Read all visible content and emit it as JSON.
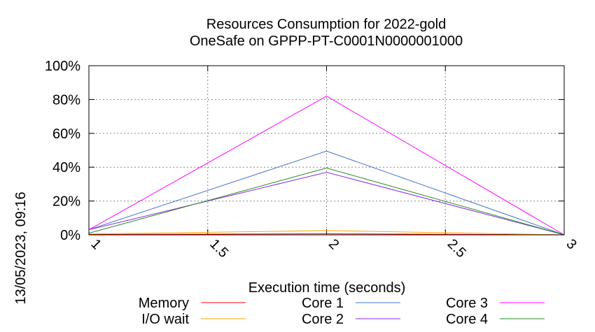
{
  "chart_data": {
    "type": "line",
    "title": "Resources Consumption for 2022-gold",
    "subtitle": "OneSafe on GPPP-PT-C0001N0000001000",
    "side_label": "13/05/2023, 09:16",
    "xlabel": "Execution time (seconds)",
    "ylabel": "",
    "xlim": [
      1,
      3
    ],
    "ylim": [
      0,
      100
    ],
    "x_ticks": [
      1,
      1.5,
      2,
      2.5,
      3
    ],
    "x_tick_labels": [
      "1",
      "1.5",
      "2",
      "2.5",
      "3"
    ],
    "y_ticks": [
      0,
      20,
      40,
      60,
      80,
      100
    ],
    "y_tick_labels": [
      "0%",
      "20%",
      "40%",
      "60%",
      "80%",
      "100%"
    ],
    "grid": true,
    "legend_position": "bottom",
    "x": [
      1,
      2,
      3
    ],
    "series": [
      {
        "name": "Memory",
        "color": "#ff0000",
        "values": [
          0.2,
          0.6,
          0
        ]
      },
      {
        "name": "I/O wait",
        "color": "#ffa500",
        "values": [
          0.5,
          2.5,
          0
        ]
      },
      {
        "name": "Core 1",
        "color": "#4472c4",
        "values": [
          3,
          49.5,
          0
        ]
      },
      {
        "name": "Core 2",
        "color": "#8a2be2",
        "values": [
          3,
          37,
          0
        ]
      },
      {
        "name": "Core 3",
        "color": "#ff00ff",
        "values": [
          3,
          82,
          0
        ]
      },
      {
        "name": "Core 4",
        "color": "#228b22",
        "values": [
          1,
          39.5,
          0
        ]
      }
    ]
  }
}
